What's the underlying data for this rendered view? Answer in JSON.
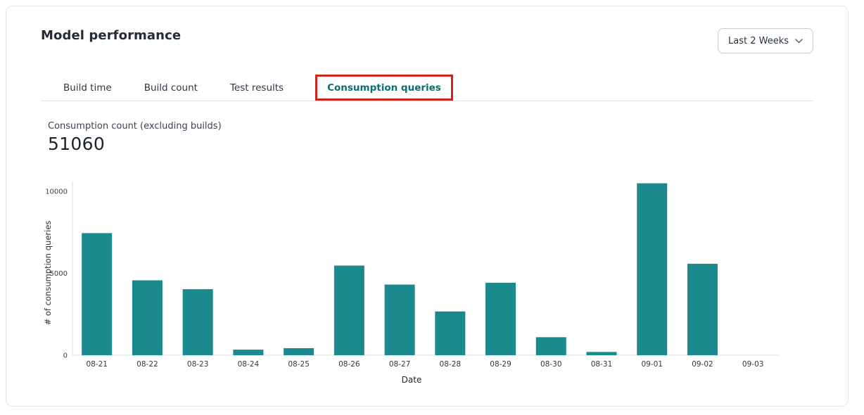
{
  "header": {
    "title": "Model performance",
    "range_selector": {
      "value": "Last 2 Weeks"
    }
  },
  "tabs": [
    {
      "label": "Build time",
      "active": false
    },
    {
      "label": "Build count",
      "active": false
    },
    {
      "label": "Test results",
      "active": false
    },
    {
      "label": "Consumption queries",
      "active": true
    }
  ],
  "metric": {
    "label": "Consumption count (excluding builds)",
    "value": "51060"
  },
  "chart_data": {
    "type": "bar",
    "title": "",
    "categories": [
      "08-21",
      "08-22",
      "08-23",
      "08-24",
      "08-25",
      "08-26",
      "08-27",
      "08-28",
      "08-29",
      "08-30",
      "08-31",
      "09-01",
      "09-02",
      "09-03"
    ],
    "values": [
      7450,
      4570,
      4030,
      340,
      430,
      5470,
      4310,
      2670,
      4420,
      1100,
      200,
      10490,
      5580,
      0
    ],
    "xlabel": "Date",
    "ylabel": "# of consumption queries",
    "ylim": [
      0,
      10600
    ],
    "yticks": [
      0,
      5000,
      10000
    ],
    "grid": false,
    "legend": false,
    "bar_color": "#1a8a8e"
  },
  "colors": {
    "bar": "#1a8a8e",
    "tab_active": "#0d6d72",
    "annotation_red": "#cf231e",
    "axis_line": "#d9dce0",
    "card_border": "#e4e6e9"
  }
}
